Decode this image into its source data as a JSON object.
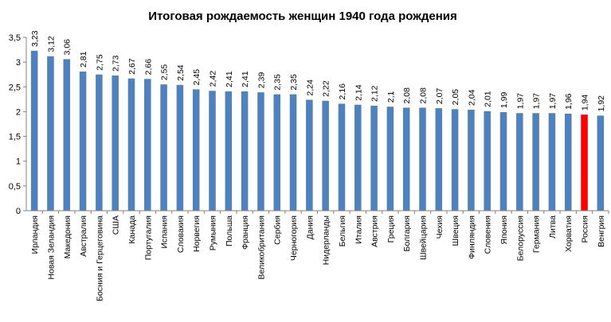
{
  "chart_data": {
    "type": "bar",
    "title": "Итоговая рождаемость женщин 1940 года  рождения",
    "xlabel": "",
    "ylabel": "",
    "ylim": [
      0,
      3.5
    ],
    "yticks": [
      "0",
      "0,5",
      "1",
      "1,5",
      "2",
      "2,5",
      "3",
      "3,5"
    ],
    "grid": false,
    "legend": "none",
    "bar_color": "#4F81BD",
    "highlight_color": "#FF0000",
    "highlight_category": "Россия",
    "categories": [
      "Ирландия",
      "Новая Зеландия",
      "Македония",
      "Австралия",
      "Босния и Герцеговина",
      "США",
      "Канада",
      "Португалия",
      "Испания",
      "Словакия",
      "Норвегия",
      "Румыния",
      "Польша",
      "Франция",
      "Великобритания",
      "Сербия",
      "Черногория",
      "Дания",
      "Нидерланды",
      "Бельгия",
      "Италия",
      "Австрия",
      "Греция",
      "Болгария",
      "Швейцария",
      "Чехия",
      "Швеция",
      "Финляндия",
      "Словения",
      "Япония",
      "Белоруссия",
      "Германия",
      "Литва",
      "Хорватия",
      "Россия",
      "Венгрия"
    ],
    "values": [
      3.23,
      3.12,
      3.06,
      2.81,
      2.75,
      2.73,
      2.67,
      2.66,
      2.55,
      2.54,
      2.45,
      2.42,
      2.41,
      2.41,
      2.39,
      2.35,
      2.35,
      2.24,
      2.22,
      2.16,
      2.14,
      2.12,
      2.1,
      2.08,
      2.08,
      2.07,
      2.05,
      2.04,
      2.01,
      1.99,
      1.97,
      1.97,
      1.97,
      1.96,
      1.94,
      1.92
    ],
    "data_labels": [
      "3,23",
      "3,12",
      "3,06",
      "2,81",
      "2,75",
      "2,73",
      "2,67",
      "2,66",
      "2,55",
      "2,54",
      "2,45",
      "2,42",
      "2,41",
      "2,41",
      "2,39",
      "2,35",
      "2,35",
      "2,24",
      "2,22",
      "2,16",
      "2,14",
      "2,12",
      "2,1",
      "2,08",
      "2,08",
      "2,07",
      "2,05",
      "2,04",
      "2,01",
      "1,99",
      "1,97",
      "1,97",
      "1,97",
      "1,96",
      "1,94",
      "1,92"
    ]
  }
}
